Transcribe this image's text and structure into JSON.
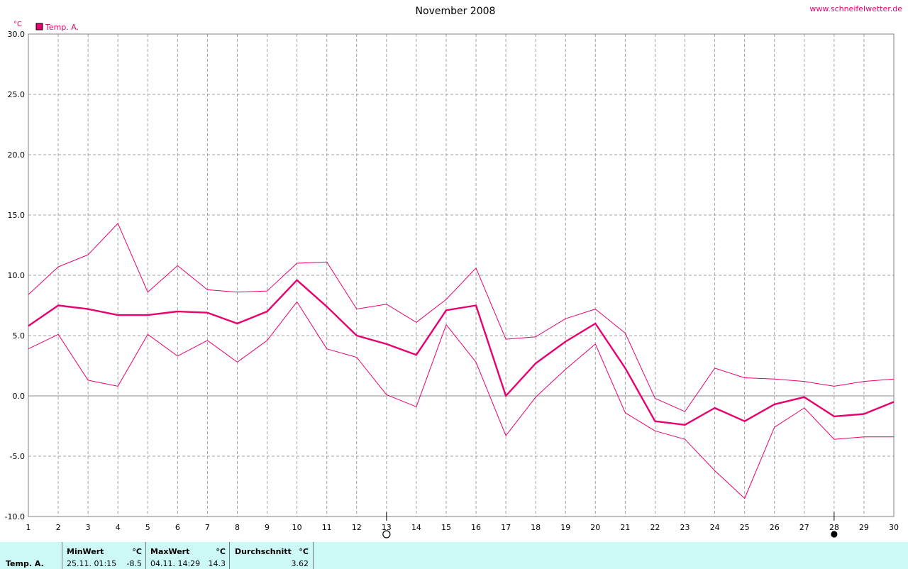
{
  "header": {
    "title": "November 2008",
    "website": "www.schneifelwetter.de",
    "unit": "°C",
    "legend_label": "Temp. A."
  },
  "colors": {
    "series": "#e8006f",
    "grid": "#a0a0a0",
    "stats_bg": "#ccf8f6"
  },
  "chart_data": {
    "type": "line",
    "title": "November 2008",
    "ylabel": "°C",
    "x": [
      1,
      2,
      3,
      4,
      5,
      6,
      7,
      8,
      9,
      10,
      11,
      12,
      13,
      14,
      15,
      16,
      17,
      18,
      19,
      20,
      21,
      22,
      23,
      24,
      25,
      26,
      27,
      28,
      29,
      30
    ],
    "xlim": [
      1,
      30
    ],
    "ylim": [
      -10,
      30
    ],
    "y_ticks": [
      "30.0",
      "25.0",
      "20.0",
      "15.0",
      "10.0",
      "5.0",
      "0.0",
      "-5.0",
      "-10.0"
    ],
    "grid": true,
    "legend_position": "top-left",
    "moon_phases": [
      {
        "day": 13,
        "phase": "full moon",
        "symbol": "○"
      },
      {
        "day": 28,
        "phase": "new moon",
        "symbol": "●"
      }
    ],
    "series": [
      {
        "name": "Temp. A.",
        "role": "maximum",
        "values": [
          8.4,
          10.7,
          11.7,
          14.3,
          8.6,
          10.8,
          8.8,
          8.6,
          8.7,
          11.0,
          11.1,
          7.2,
          7.6,
          6.1,
          8.0,
          10.6,
          4.7,
          4.9,
          6.4,
          7.2,
          5.2,
          -0.2,
          -1.3,
          2.3,
          1.5,
          1.4,
          1.2,
          0.8,
          1.2,
          1.4
        ]
      },
      {
        "name": "Temp. A.",
        "role": "mean",
        "values": [
          5.8,
          7.5,
          7.2,
          6.7,
          6.7,
          7.0,
          6.9,
          6.0,
          7.0,
          9.6,
          7.4,
          5.0,
          4.3,
          3.4,
          7.1,
          7.5,
          0.0,
          2.7,
          4.5,
          6.0,
          2.3,
          -2.1,
          -2.4,
          -1.0,
          -2.1,
          -0.7,
          -0.1,
          -1.7,
          -1.5,
          -0.5
        ]
      },
      {
        "name": "Temp. A.",
        "role": "minimum",
        "values": [
          3.9,
          5.1,
          1.3,
          0.8,
          5.1,
          3.3,
          4.6,
          2.8,
          4.6,
          7.8,
          3.9,
          3.2,
          0.1,
          -0.9,
          5.9,
          2.8,
          -3.3,
          -0.1,
          2.2,
          4.3,
          -1.4,
          -2.9,
          -3.6,
          -6.2,
          -8.5,
          -2.6,
          -1.0,
          -3.6,
          -3.4,
          -3.4
        ]
      }
    ]
  },
  "stats": {
    "name": "Temp. A.",
    "min_header": "MinWert",
    "min_unit": "°C",
    "min_when": "25.11.  01:15",
    "min_value": "-8.5",
    "max_header": "MaxWert",
    "max_unit": "°C",
    "max_when": "04.11.  14:29",
    "max_value": "14.3",
    "avg_header": "Durchschnitt",
    "avg_unit": "°C",
    "avg_value": "3.62"
  }
}
